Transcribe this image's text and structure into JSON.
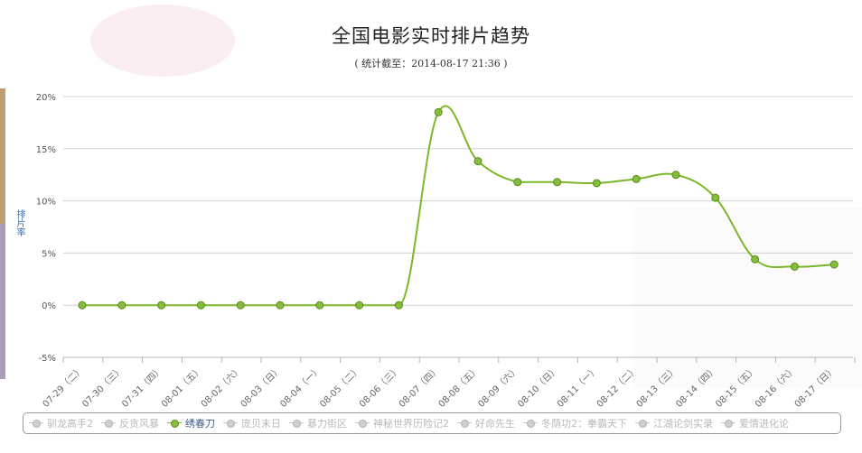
{
  "title": "全国电影实时排片趋势",
  "subtitle": "( 统计截至：2014-08-17 21:36 )",
  "colors": {
    "series": "#7ab82a",
    "point": "#84be3a",
    "point_stroke": "#5a8a1c",
    "grid": "#cfcfcf",
    "ylabel": "#3a6fae"
  },
  "chart_data": {
    "type": "line",
    "title": "全国电影实时排片趋势",
    "subtitle": "( 统计截至：2014-08-17 21:36 )",
    "ylabel": "排片率",
    "ylim": [
      -5,
      20
    ],
    "yticks": [
      "20%",
      "15%",
      "10%",
      "5%",
      "0%",
      "-5%"
    ],
    "ytick_values": [
      20,
      15,
      10,
      5,
      0,
      -5
    ],
    "grid": true,
    "legend_position": "bottom",
    "categories": [
      "07-29（二）",
      "07-30（三）",
      "07-31（四）",
      "08-01（五）",
      "08-02（六）",
      "08-03（日）",
      "08-04（一）",
      "08-05（二）",
      "08-06（三）",
      "08-07（四）",
      "08-08（五）",
      "08-09（六）",
      "08-10（日）",
      "08-11（一）",
      "08-12（二）",
      "08-13（三）",
      "08-14（四）",
      "08-15（五）",
      "08-16（六）",
      "08-17（日）"
    ],
    "series": [
      {
        "name": "绣春刀",
        "values": [
          0,
          0,
          0,
          0,
          0,
          0,
          0,
          0,
          0,
          18.5,
          13.8,
          11.8,
          11.8,
          11.7,
          12.1,
          12.5,
          10.3,
          4.4,
          3.7,
          3.9
        ]
      }
    ]
  },
  "legend": [
    {
      "label": "驯龙高手2",
      "active": false
    },
    {
      "label": "反贪风暴",
      "active": false
    },
    {
      "label": "绣春刀",
      "active": true
    },
    {
      "label": "庞贝末日",
      "active": false
    },
    {
      "label": "暴力街区",
      "active": false
    },
    {
      "label": "神秘世界历险记2",
      "active": false
    },
    {
      "label": "好命先生",
      "active": false
    },
    {
      "label": "冬荫功2：拳霸天下",
      "active": false
    },
    {
      "label": "江湖论剑实录",
      "active": false
    },
    {
      "label": "爱情进化论",
      "active": false
    }
  ]
}
